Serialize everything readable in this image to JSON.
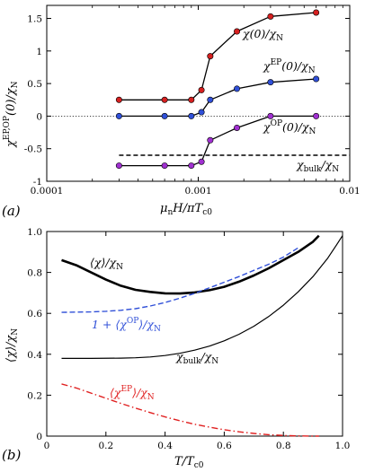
{
  "chart_data": [
    {
      "panel_label": "(a)",
      "type": "line",
      "xscale": "log",
      "xlim": [
        0.0001,
        0.01
      ],
      "ylim": [
        -1.0,
        1.7
      ],
      "xlabel": "μnH/πTc0",
      "ylabel": "χEP,OP(0)/χN",
      "x_ticks": [
        {
          "v": 0.0001,
          "label": "0.0001"
        },
        {
          "v": 0.001,
          "label": "0.001"
        },
        {
          "v": 0.01,
          "label": "0.01"
        }
      ],
      "y_ticks": [
        {
          "v": -1.0,
          "label": "-1"
        },
        {
          "v": -0.5,
          "label": "-0.5"
        },
        {
          "v": 0,
          "label": "0"
        },
        {
          "v": 0.5,
          "label": "0.5"
        },
        {
          "v": 1.0,
          "label": "1"
        },
        {
          "v": 1.5,
          "label": "1.5"
        }
      ],
      "series": [
        {
          "name": "χ(0)/χN",
          "color": "#d62020",
          "marker": "circle",
          "x": [
            0.0003,
            0.0006,
            0.0009,
            0.00105,
            0.0012,
            0.0018,
            0.003,
            0.006
          ],
          "y": [
            0.25,
            0.25,
            0.25,
            0.4,
            0.92,
            1.3,
            1.53,
            1.59
          ]
        },
        {
          "name": "χEP(0)/χN",
          "color": "#3050d8",
          "marker": "circle",
          "x": [
            0.0003,
            0.0006,
            0.0009,
            0.00105,
            0.0012,
            0.0018,
            0.003,
            0.006
          ],
          "y": [
            0.0,
            0.0,
            0.0,
            0.06,
            0.25,
            0.42,
            0.52,
            0.57
          ]
        },
        {
          "name": "χOP(0)/χN",
          "color": "#a030d0",
          "marker": "circle",
          "x": [
            0.0003,
            0.0006,
            0.0009,
            0.00105,
            0.0012,
            0.0018,
            0.003,
            0.006
          ],
          "y": [
            -0.76,
            -0.76,
            -0.76,
            -0.7,
            -0.37,
            -0.18,
            0.0,
            0.0
          ]
        },
        {
          "name": "χbulk/χN",
          "color": "#000000",
          "style": "dashed",
          "x": [
            0.0003,
            0.01
          ],
          "y": [
            -0.6,
            -0.6
          ]
        }
      ],
      "zero_line": "dotted",
      "annotations": [
        {
          "text": "χ(0)/χN",
          "series": 0
        },
        {
          "text": "χEP(0)/χN",
          "series": 1
        },
        {
          "text": "χOP(0)/χN",
          "series": 2
        },
        {
          "text": "χbulk/χN",
          "series": 3
        }
      ]
    },
    {
      "panel_label": "(b)",
      "type": "line",
      "xlim": [
        0,
        1.0
      ],
      "ylim": [
        0,
        1.0
      ],
      "xlabel": "T/Tc0",
      "ylabel": "⟨χ⟩/χN",
      "x_ticks": [
        {
          "v": 0,
          "label": "0"
        },
        {
          "v": 0.2,
          "label": "0.2"
        },
        {
          "v": 0.4,
          "label": "0.4"
        },
        {
          "v": 0.6,
          "label": "0.6"
        },
        {
          "v": 0.8,
          "label": "0.8"
        },
        {
          "v": 1.0,
          "label": "1.0"
        }
      ],
      "y_ticks": [
        {
          "v": 0,
          "label": "0"
        },
        {
          "v": 0.2,
          "label": "0.2"
        },
        {
          "v": 0.4,
          "label": "0.4"
        },
        {
          "v": 0.6,
          "label": "0.6"
        },
        {
          "v": 0.8,
          "label": "0.8"
        },
        {
          "v": 1.0,
          "label": "1.0"
        }
      ],
      "series": [
        {
          "name": "⟨χ⟩/χN",
          "color": "#000000",
          "style": "thick",
          "x": [
            0.05,
            0.1,
            0.15,
            0.2,
            0.25,
            0.3,
            0.35,
            0.4,
            0.45,
            0.5,
            0.55,
            0.6,
            0.65,
            0.7,
            0.75,
            0.8,
            0.85,
            0.9,
            0.92
          ],
          "y": [
            0.86,
            0.835,
            0.8,
            0.765,
            0.735,
            0.715,
            0.705,
            0.698,
            0.697,
            0.702,
            0.713,
            0.73,
            0.755,
            0.785,
            0.82,
            0.86,
            0.9,
            0.95,
            0.98
          ]
        },
        {
          "name": "1 + ⟨χOP⟩/χN",
          "color": "#3050d8",
          "style": "dashed",
          "x": [
            0.05,
            0.1,
            0.15,
            0.2,
            0.25,
            0.3,
            0.35,
            0.4,
            0.45,
            0.5,
            0.55,
            0.6,
            0.65,
            0.7,
            0.75,
            0.8,
            0.85
          ],
          "y": [
            0.605,
            0.606,
            0.607,
            0.61,
            0.615,
            0.623,
            0.636,
            0.653,
            0.674,
            0.698,
            0.725,
            0.752,
            0.78,
            0.81,
            0.84,
            0.875,
            0.92
          ]
        },
        {
          "name": "χbulk/χN",
          "color": "#000000",
          "style": "solid",
          "x": [
            0.05,
            0.15,
            0.25,
            0.3,
            0.35,
            0.4,
            0.45,
            0.5,
            0.55,
            0.6,
            0.65,
            0.7,
            0.75,
            0.8,
            0.85,
            0.9,
            0.95,
            0.98,
            1.0
          ],
          "y": [
            0.38,
            0.38,
            0.381,
            0.383,
            0.387,
            0.394,
            0.405,
            0.42,
            0.44,
            0.466,
            0.498,
            0.537,
            0.584,
            0.64,
            0.705,
            0.78,
            0.87,
            0.935,
            0.98
          ]
        },
        {
          "name": "⟨χEP⟩/χN",
          "color": "#e02020",
          "style": "dashdot",
          "x": [
            0.05,
            0.1,
            0.15,
            0.2,
            0.25,
            0.3,
            0.35,
            0.4,
            0.45,
            0.5,
            0.55,
            0.6,
            0.65,
            0.7,
            0.75,
            0.8,
            0.85,
            0.9,
            0.92
          ],
          "y": [
            0.255,
            0.235,
            0.21,
            0.185,
            0.16,
            0.137,
            0.115,
            0.094,
            0.075,
            0.058,
            0.044,
            0.031,
            0.021,
            0.013,
            0.007,
            0.003,
            0.001,
            0.0,
            0.0
          ]
        }
      ],
      "annotations": [
        {
          "text": "⟨χ⟩/χN",
          "series": 0
        },
        {
          "text": "1 + ⟨χOP⟩/χN",
          "series": 1
        },
        {
          "text": "χbulk/χN",
          "series": 2
        },
        {
          "text": "⟨χEP⟩/χN",
          "series": 3
        }
      ]
    }
  ]
}
